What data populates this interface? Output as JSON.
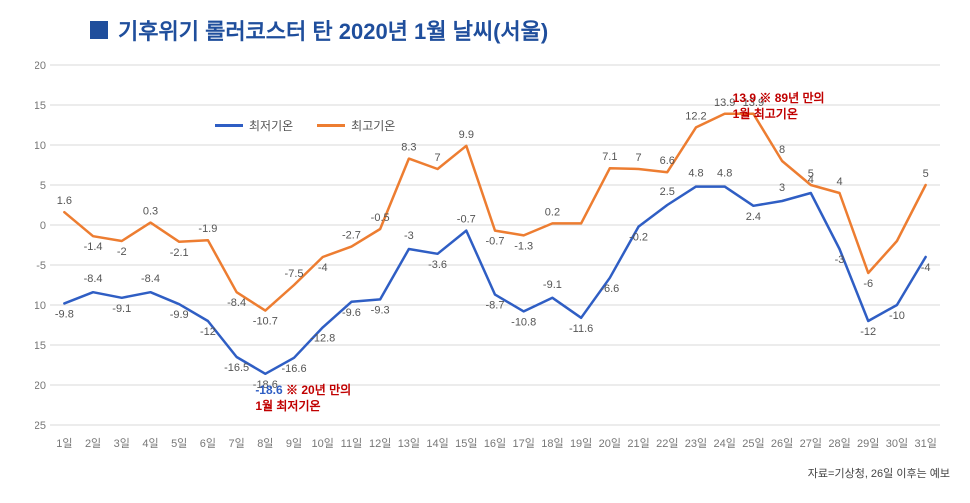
{
  "title": "기후위기 롤러코스터 탄 2020년 1월 날씨(서울)",
  "source_note": "자료=기상청, 26일 이후는 예보",
  "legend": {
    "low": "최저기온",
    "high": "최고기온"
  },
  "annotations": {
    "low_record": {
      "marker": "※",
      "text": "20년 만의\n1월 최저기온",
      "value_label": "-18.6"
    },
    "high_record": {
      "marker": "※",
      "text": "89년 만의\n1월 최고기온",
      "value_label": "13.9"
    }
  },
  "chart": {
    "type": "line",
    "background_color": "#ffffff",
    "grid_color": "#d9d9d9",
    "categories": [
      "1일",
      "2일",
      "3일",
      "4일",
      "5일",
      "6일",
      "7일",
      "8일",
      "9일",
      "10일",
      "11일",
      "12일",
      "13일",
      "14일",
      "15일",
      "16일",
      "17일",
      "18일",
      "19일",
      "20일",
      "21일",
      "22일",
      "23일",
      "24일",
      "25일",
      "26일",
      "27일",
      "28일",
      "29일",
      "30일",
      "31일"
    ],
    "ylim": [
      -25,
      20
    ],
    "ytick_step": 5,
    "yticks": [
      -25,
      -20,
      -15,
      -10,
      -5,
      0,
      5,
      10,
      15,
      20
    ],
    "series": [
      {
        "name": "low",
        "label_key": "legend.low",
        "color": "#2f5ec4",
        "line_width": 2.5,
        "values": [
          -9.8,
          -8.4,
          -9.1,
          -8.4,
          -9.9,
          -12,
          -16.5,
          -18.6,
          -16.6,
          -12.8,
          -9.6,
          -9.3,
          -3,
          -3.6,
          -0.7,
          -8.7,
          -10.8,
          -9.1,
          -11.6,
          -6.6,
          -0.2,
          2.5,
          4.8,
          4.8,
          2.4,
          3,
          4,
          -3,
          -12,
          -10,
          -4
        ],
        "data_labels": [
          "-9.8",
          "-8.4",
          "-9.1",
          "-8.4",
          "-9.9",
          "-12",
          "-16.5",
          "-18.6",
          "-16.6",
          "-12.8",
          "-9.6",
          "-9.3",
          "-3",
          "-3.6",
          "-0.7",
          "-8.7",
          "-10.8",
          "-9.1",
          "-11.6",
          "-6.6",
          "-0.2",
          "2.5",
          "4.8",
          "4.8",
          "2.4",
          "3",
          "4",
          "-3",
          "-12",
          "-10",
          "-4"
        ],
        "label_offsets_y": [
          14,
          -10,
          14,
          -10,
          14,
          14,
          14,
          14,
          14,
          14,
          14,
          14,
          -10,
          14,
          -8,
          14,
          14,
          -10,
          14,
          14,
          14,
          -10,
          -10,
          -10,
          14,
          -10,
          -10,
          14,
          14,
          14,
          14
        ]
      },
      {
        "name": "high",
        "label_key": "legend.high",
        "color": "#ed7d31",
        "line_width": 2.5,
        "values": [
          1.6,
          -1.4,
          -2,
          0.3,
          -2.1,
          -1.9,
          -8.4,
          -10.7,
          -7.5,
          -4,
          -2.7,
          -0.5,
          8.3,
          7,
          9.9,
          -0.7,
          -1.3,
          0.2,
          0.2,
          7.1,
          7,
          6.6,
          12.2,
          13.9,
          13.9,
          8,
          5,
          4,
          -6,
          -2,
          5
        ],
        "data_labels": [
          "1.6",
          "-1.4",
          "-2",
          "0.3",
          "-2.1",
          "-1.9",
          "-8.4",
          "-10.7",
          "-7.5",
          "-4",
          "-2.7",
          "-0.5",
          "8.3",
          "7",
          "9.9",
          "-0.7",
          "-1.3",
          "0.2",
          "",
          "7.1",
          "7",
          "6.6",
          "12.2",
          "13.9",
          "13.9",
          "8",
          "5",
          "4",
          "-6",
          "",
          "5"
        ],
        "label_offsets_y": [
          -8,
          14,
          14,
          -8,
          14,
          -8,
          14,
          14,
          -8,
          14,
          -8,
          -8,
          -8,
          -8,
          -8,
          14,
          14,
          -8,
          0,
          -8,
          -8,
          -8,
          -8,
          -8,
          -8,
          -8,
          -8,
          -8,
          14,
          0,
          -8
        ]
      }
    ],
    "title_color": "#1f4e9c",
    "title_fontsize": 22,
    "axis_fontsize": 11,
    "label_color": "#555555",
    "highlight_color": "#c00000"
  }
}
